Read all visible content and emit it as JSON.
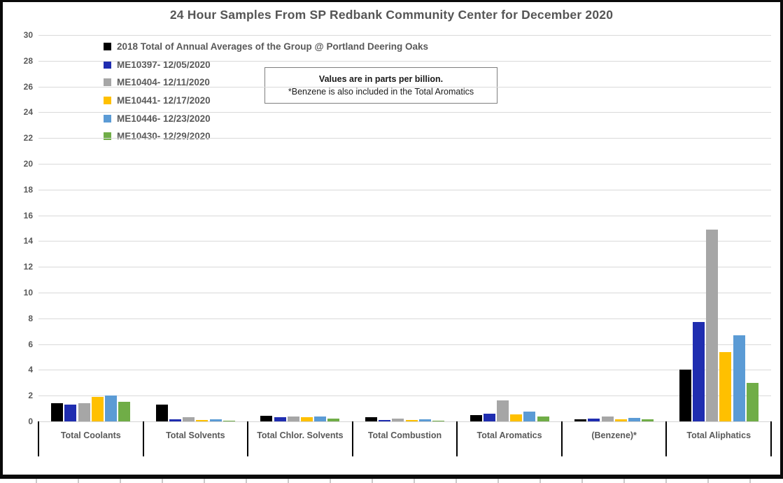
{
  "chart_data": {
    "type": "bar",
    "title": "24 Hour Samples From SP Redbank Community Center for December 2020",
    "note": {
      "line1": "Values are in parts per billion.",
      "line2": "*Benzene is also included in the Total Aromatics"
    },
    "categories": [
      "Total Coolants",
      "Total Solvents",
      "Total Chlor. Solvents",
      "Total Combustion",
      "Total Aromatics",
      "(Benzene)*",
      "Total Aliphatics"
    ],
    "series": [
      {
        "name": "2018 Total of Annual Averages of the Group @ Portland Deering Oaks",
        "color": "#000000",
        "values": [
          1.4,
          1.3,
          0.45,
          0.3,
          0.5,
          0.15,
          4.0
        ]
      },
      {
        "name": "ME10397- 12/05/2020",
        "color": "#1f2db0",
        "values": [
          1.3,
          0.15,
          0.3,
          0.1,
          0.6,
          0.2,
          7.7
        ]
      },
      {
        "name": "ME10404- 12/11/2020",
        "color": "#a6a6a6",
        "values": [
          1.4,
          0.35,
          0.4,
          0.2,
          1.65,
          0.4,
          14.9
        ]
      },
      {
        "name": "ME10441- 12/17/2020",
        "color": "#ffc000",
        "values": [
          1.9,
          0.1,
          0.35,
          0.1,
          0.55,
          0.15,
          5.4
        ]
      },
      {
        "name": "ME10446- 12/23/2020",
        "color": "#5b9bd5",
        "values": [
          2.0,
          0.15,
          0.4,
          0.15,
          0.75,
          0.25,
          6.7
        ]
      },
      {
        "name": "ME10430- 12/29/2020",
        "color": "#70ad47",
        "values": [
          1.5,
          0.05,
          0.2,
          0.08,
          0.4,
          0.15,
          3.0
        ]
      }
    ],
    "ylabel": "",
    "xlabel": "",
    "ylim": [
      0,
      30
    ],
    "ytick_step": 2,
    "grid": true,
    "legend_position": "inside-top-left",
    "colors": {
      "grid": "#d9d9d9",
      "axis_text": "#595959",
      "title_text": "#555555",
      "frame_border": "#0a0a0a"
    }
  }
}
